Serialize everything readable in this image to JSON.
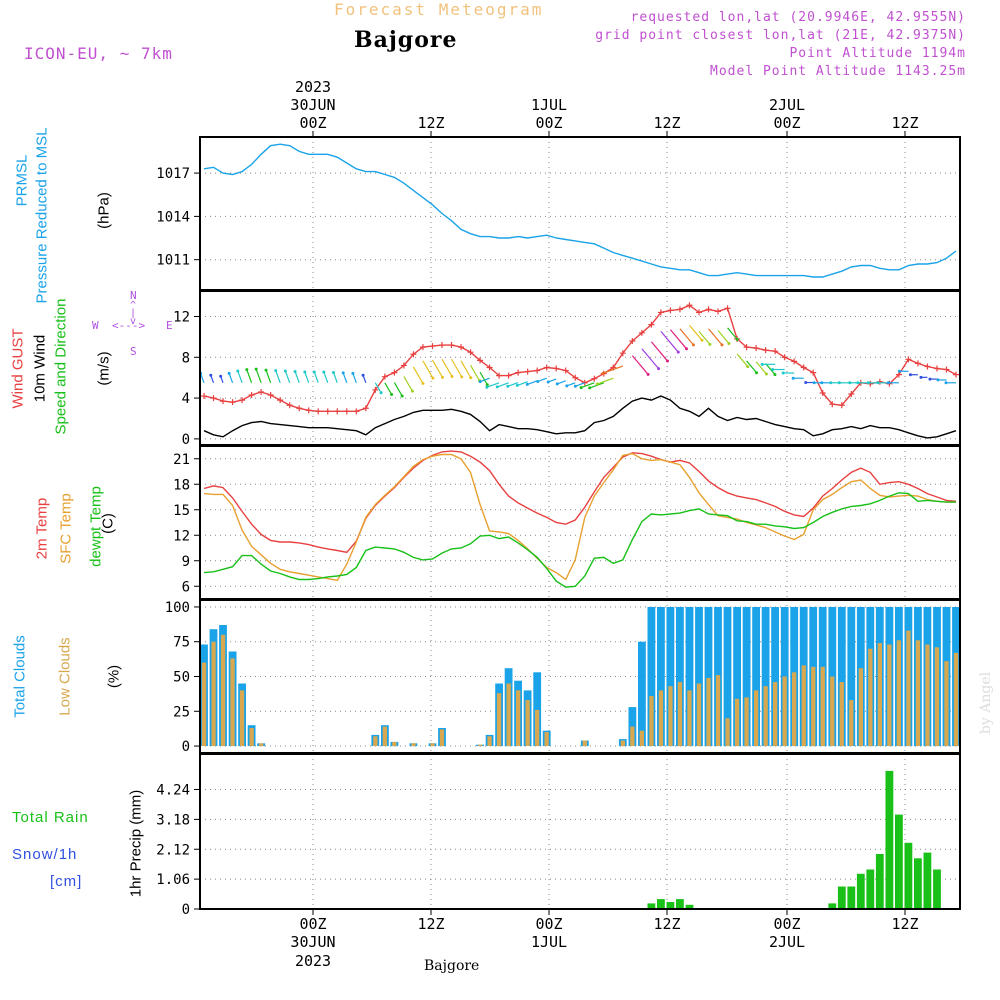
{
  "header": {
    "title": "Forecast Meteogram",
    "location": "Bajgore",
    "model": "ICON-EU, ~ 7km",
    "info": [
      "requested lon,lat (20.9946E, 42.9555N)",
      "grid point closest lon,lat (21E, 42.9375N)",
      "Point Altitude 1194m",
      "Model Point Altitude 1143.25m"
    ],
    "footer_location": "Bajgore",
    "signature": "by Angel"
  },
  "time_axis": {
    "top": [
      {
        "line1": "2023",
        "line2": "30JUN",
        "line3": "00Z"
      },
      {
        "line1": "",
        "line2": "",
        "line3": "12Z"
      },
      {
        "line1": "",
        "line2": "1JUL",
        "line3": "00Z"
      },
      {
        "line1": "",
        "line2": "",
        "line3": "12Z"
      },
      {
        "line1": "",
        "line2": "2JUL",
        "line3": "00Z"
      },
      {
        "line1": "",
        "line2": "",
        "line3": "12Z"
      }
    ],
    "bottom": [
      {
        "line1": "00Z",
        "line2": "30JUN",
        "line3": "2023"
      },
      {
        "line1": "12Z",
        "line2": "",
        "line3": ""
      },
      {
        "line1": "00Z",
        "line2": "1JUL",
        "line3": ""
      },
      {
        "line1": "12Z",
        "line2": "",
        "line3": ""
      },
      {
        "line1": "00Z",
        "line2": "2JUL",
        "line3": ""
      },
      {
        "line1": "12Z",
        "line2": "",
        "line3": ""
      }
    ]
  },
  "panel_labels": {
    "pressure": {
      "name": "PRMSL",
      "desc": "Pressure Reduced to MSL",
      "unit": "(hPa)",
      "color": "#1aa3e8"
    },
    "wind": {
      "gust": "Wind GUST",
      "wind10": "10m Wind",
      "speed": "Speed and Direction",
      "unit": "(m/s)",
      "compass_n": "N",
      "compass_s": "S",
      "compass_e": "E",
      "compass_w": "W",
      "compass_v": "^ | v",
      "compass_h": "<--->",
      "gust_color": "#e84040",
      "wind_color": "#000000",
      "speed_color": "#18c018",
      "compass_color": "#b050e0"
    },
    "temp": {
      "t2m": "2m Temp",
      "sfc": "SFC Temp",
      "dew": "dewpt Temp",
      "unit": "(C)",
      "t2m_color": "#e84040",
      "sfc_color": "#e8a030",
      "dew_color": "#18c018"
    },
    "clouds": {
      "total": "Total Clouds",
      "low": "Low Clouds",
      "unit": "(%)",
      "total_color": "#1aa3e8",
      "low_color": "#d8a850"
    },
    "precip": {
      "rain": "Total  Rain",
      "snow": "Snow/1h",
      "cm": "[cm]",
      "axis": "1hr Precip (mm)",
      "rain_color": "#18c018",
      "snow_color": "#3050e0"
    }
  },
  "chart_data": [
    {
      "type": "line",
      "title": "PRMSL",
      "ylabel": "(hPa)",
      "ylim": [
        1008.9,
        1019.5
      ],
      "yticks": [
        "1011",
        "1014",
        "1017"
      ],
      "series": [
        {
          "name": "PRMSL",
          "color": "#1aa3e8",
          "values": [
            1017.3,
            1017.4,
            1017.0,
            1016.9,
            1017.1,
            1017.6,
            1018.3,
            1018.9,
            1019.0,
            1018.9,
            1018.5,
            1018.3,
            1018.3,
            1018.3,
            1018.1,
            1017.7,
            1017.3,
            1017.1,
            1017.1,
            1016.9,
            1016.7,
            1016.3,
            1015.8,
            1015.3,
            1014.8,
            1014.2,
            1013.7,
            1013.1,
            1012.8,
            1012.6,
            1012.6,
            1012.5,
            1012.5,
            1012.6,
            1012.5,
            1012.6,
            1012.7,
            1012.5,
            1012.4,
            1012.3,
            1012.2,
            1012.1,
            1011.8,
            1011.5,
            1011.3,
            1011.1,
            1010.9,
            1010.7,
            1010.5,
            1010.4,
            1010.3,
            1010.3,
            1010.1,
            1009.9,
            1009.9,
            1010.0,
            1010.1,
            1010.0,
            1009.9,
            1009.9,
            1009.9,
            1009.9,
            1009.9,
            1009.9,
            1009.8,
            1009.8,
            1010.0,
            1010.2,
            1010.5,
            1010.6,
            1010.6,
            1010.4,
            1010.3,
            1010.3,
            1010.6,
            1010.7,
            1010.7,
            1010.8,
            1011.1,
            1011.6
          ]
        }
      ]
    },
    {
      "type": "line",
      "title": "Wind",
      "ylabel": "(m/s)",
      "ylim": [
        -0.6,
        14.5
      ],
      "yticks": [
        "0",
        "4",
        "8",
        "12"
      ],
      "series": [
        {
          "name": "Wind GUST",
          "color": "#e84040",
          "values": [
            4.2,
            4.0,
            3.7,
            3.6,
            3.8,
            4.3,
            4.6,
            4.3,
            3.8,
            3.3,
            3.0,
            2.8,
            2.7,
            2.7,
            2.7,
            2.7,
            2.7,
            3.0,
            4.8,
            6.1,
            6.5,
            7.2,
            8.3,
            9.0,
            9.1,
            9.2,
            9.2,
            9.0,
            8.5,
            7.7,
            7.0,
            6.2,
            6.2,
            6.5,
            6.6,
            6.7,
            7.0,
            6.9,
            6.7,
            6.0,
            5.5,
            5.9,
            6.4,
            7.0,
            8.4,
            9.6,
            10.4,
            11.2,
            12.4,
            12.6,
            12.7,
            13.1,
            12.4,
            12.7,
            12.5,
            12.8,
            9.8,
            9.0,
            8.9,
            8.7,
            8.6,
            8.0,
            7.6,
            7.0,
            6.5,
            4.5,
            3.4,
            3.3,
            4.4,
            5.5,
            5.4,
            5.6,
            5.4,
            6.3,
            7.8,
            7.4,
            7.1,
            6.9,
            6.8,
            6.3
          ]
        },
        {
          "name": "10m Wind",
          "color": "#000000",
          "values": [
            0.8,
            0.4,
            0.2,
            0.8,
            1.3,
            1.6,
            1.7,
            1.5,
            1.4,
            1.3,
            1.2,
            1.1,
            1.1,
            1.1,
            1.0,
            0.9,
            0.8,
            0.4,
            1.1,
            1.5,
            1.9,
            2.2,
            2.6,
            2.8,
            2.8,
            2.8,
            2.9,
            2.7,
            2.4,
            1.7,
            0.8,
            1.4,
            1.2,
            1.0,
            1.0,
            0.9,
            0.7,
            0.5,
            0.6,
            0.6,
            0.8,
            1.6,
            1.8,
            2.2,
            3.0,
            3.7,
            4.0,
            3.8,
            4.2,
            3.8,
            3.0,
            2.7,
            2.2,
            3.0,
            2.2,
            1.8,
            2.1,
            1.9,
            2.0,
            1.7,
            1.4,
            1.2,
            1.0,
            0.9,
            0.3,
            0.5,
            0.9,
            1.0,
            1.2,
            1.0,
            1.3,
            1.1,
            1.1,
            0.9,
            0.6,
            0.3,
            0.1,
            0.2,
            0.5,
            0.8
          ]
        }
      ]
    },
    {
      "type": "line",
      "title": "Temperature",
      "ylabel": "(C)",
      "ylim": [
        4.5,
        22.5
      ],
      "yticks": [
        "6",
        "9",
        "12",
        "15",
        "18",
        "21"
      ],
      "series": [
        {
          "name": "2m Temp",
          "color": "#e84040",
          "values": [
            17.5,
            17.8,
            17.6,
            16.4,
            14.8,
            13.3,
            12.1,
            11.4,
            11.2,
            11.2,
            11.1,
            10.9,
            10.6,
            10.4,
            10.2,
            10.0,
            11.3,
            14.0,
            15.5,
            16.6,
            17.6,
            18.8,
            19.9,
            20.8,
            21.4,
            21.8,
            21.9,
            21.8,
            21.3,
            20.6,
            19.6,
            18.0,
            16.6,
            15.8,
            15.2,
            14.6,
            14.1,
            13.5,
            13.3,
            13.8,
            15.3,
            17.1,
            18.8,
            20.0,
            21.2,
            21.7,
            21.6,
            21.3,
            20.9,
            20.6,
            20.8,
            20.5,
            19.5,
            18.4,
            17.6,
            17.0,
            16.6,
            16.4,
            16.2,
            15.8,
            15.4,
            14.8,
            14.4,
            14.2,
            15.2,
            16.6,
            17.5,
            18.5,
            19.4,
            19.9,
            19.4,
            18.0,
            18.2,
            18.3,
            18.0,
            17.5,
            16.9,
            16.5,
            16.1,
            16.0
          ]
        },
        {
          "name": "SFC Temp",
          "color": "#e8a030",
          "values": [
            16.9,
            16.8,
            16.8,
            15.5,
            12.6,
            10.7,
            9.7,
            8.7,
            8.0,
            7.7,
            7.5,
            7.3,
            7.1,
            6.9,
            6.7,
            8.6,
            11.2,
            14.1,
            15.6,
            16.7,
            17.7,
            18.9,
            20.1,
            20.9,
            21.3,
            21.5,
            21.5,
            21.0,
            19.4,
            15.6,
            12.5,
            12.4,
            12.2,
            11.4,
            10.4,
            9.3,
            8.2,
            7.6,
            6.8,
            9.1,
            14.1,
            16.6,
            18.2,
            19.7,
            21.4,
            21.6,
            21.0,
            20.8,
            20.9,
            20.6,
            20.3,
            18.8,
            17.0,
            15.6,
            14.3,
            14.1,
            13.9,
            13.5,
            13.2,
            12.9,
            12.4,
            11.9,
            11.5,
            12.1,
            15.0,
            16.2,
            16.8,
            17.6,
            18.3,
            18.5,
            17.5,
            16.7,
            16.5,
            16.6,
            16.7,
            16.6,
            16.2,
            16.0,
            15.9,
            15.9
          ]
        },
        {
          "name": "dewpt Temp",
          "color": "#18c018",
          "values": [
            7.6,
            7.7,
            8.0,
            8.3,
            9.6,
            9.6,
            8.6,
            7.8,
            7.5,
            7.1,
            6.8,
            6.8,
            6.9,
            7.1,
            7.2,
            7.4,
            8.2,
            10.2,
            10.6,
            10.5,
            10.4,
            10.0,
            9.4,
            9.1,
            9.2,
            9.9,
            10.4,
            10.5,
            11.0,
            11.9,
            12.0,
            11.6,
            11.8,
            11.1,
            10.3,
            9.4,
            8.1,
            6.6,
            5.9,
            6.0,
            7.2,
            9.3,
            9.4,
            8.7,
            9.1,
            11.5,
            13.6,
            14.5,
            14.4,
            14.5,
            14.6,
            14.9,
            15.1,
            14.5,
            14.4,
            14.3,
            13.7,
            13.6,
            13.3,
            13.3,
            13.1,
            13.0,
            12.8,
            12.9,
            13.5,
            14.2,
            14.7,
            15.1,
            15.4,
            15.5,
            15.7,
            16.1,
            16.6,
            17.0,
            16.9,
            16.0,
            16.1,
            16.0,
            15.9,
            15.9
          ]
        }
      ]
    },
    {
      "type": "bar",
      "title": "Clouds",
      "ylabel": "(%)",
      "ylim": [
        -5,
        105
      ],
      "yticks": [
        "0",
        "25",
        "50",
        "75",
        "100"
      ],
      "series": [
        {
          "name": "Total Clouds",
          "color": "#1aa3e8",
          "values": [
            73,
            84,
            87,
            68,
            45,
            15,
            2,
            0,
            0,
            0,
            0,
            0,
            0,
            0,
            0,
            0,
            0,
            0,
            8,
            15,
            3,
            0,
            2,
            0,
            2,
            13,
            0,
            0,
            0,
            1,
            8,
            45,
            56,
            47,
            40,
            53,
            11,
            0,
            0,
            0,
            4,
            0,
            0,
            0,
            5,
            28,
            75,
            100,
            100,
            100,
            100,
            100,
            100,
            100,
            100,
            100,
            100,
            100,
            100,
            100,
            100,
            100,
            100,
            100,
            100,
            100,
            100,
            100,
            100,
            100,
            100,
            100,
            100,
            100,
            100,
            100,
            100,
            100,
            100,
            100
          ]
        },
        {
          "name": "Low Clouds",
          "color": "#d8a850",
          "values": [
            60,
            75,
            80,
            63,
            40,
            13,
            2,
            0,
            0,
            0,
            0,
            0,
            0,
            0,
            0,
            0,
            0,
            0,
            7,
            14,
            3,
            0,
            2,
            0,
            2,
            12,
            0,
            0,
            0,
            1,
            7,
            38,
            45,
            40,
            33,
            26,
            10,
            0,
            0,
            0,
            4,
            0,
            0,
            0,
            4,
            14,
            11,
            36,
            40,
            43,
            46,
            40,
            45,
            49,
            51,
            20,
            34,
            35,
            40,
            43,
            46,
            50,
            53,
            58,
            57,
            57,
            50,
            46,
            33,
            56,
            70,
            74,
            73,
            76,
            83,
            76,
            73,
            71,
            61,
            67
          ]
        }
      ]
    },
    {
      "type": "bar",
      "title": "Precipitation",
      "ylabel": "1hr Precip (mm)",
      "ylim": [
        0,
        5.5
      ],
      "yticks": [
        "0",
        "1.06",
        "2.12",
        "3.18",
        "4.24"
      ],
      "series": [
        {
          "name": "Total Rain",
          "color": "#18c018",
          "values": [
            0,
            0,
            0,
            0,
            0,
            0,
            0,
            0,
            0,
            0,
            0,
            0,
            0,
            0,
            0,
            0,
            0,
            0,
            0,
            0,
            0,
            0,
            0,
            0,
            0,
            0,
            0,
            0,
            0,
            0,
            0,
            0,
            0,
            0,
            0,
            0,
            0,
            0,
            0,
            0,
            0,
            0,
            0,
            0,
            0,
            0,
            0,
            0.2,
            0.35,
            0.25,
            0.35,
            0.15,
            0,
            0,
            0,
            0,
            0,
            0,
            0,
            0,
            0,
            0,
            0,
            0,
            0,
            0,
            0.2,
            0.8,
            0.8,
            1.25,
            1.4,
            1.95,
            4.9,
            3.35,
            2.35,
            1.8,
            2.0,
            1.4,
            0,
            0
          ]
        }
      ]
    }
  ]
}
